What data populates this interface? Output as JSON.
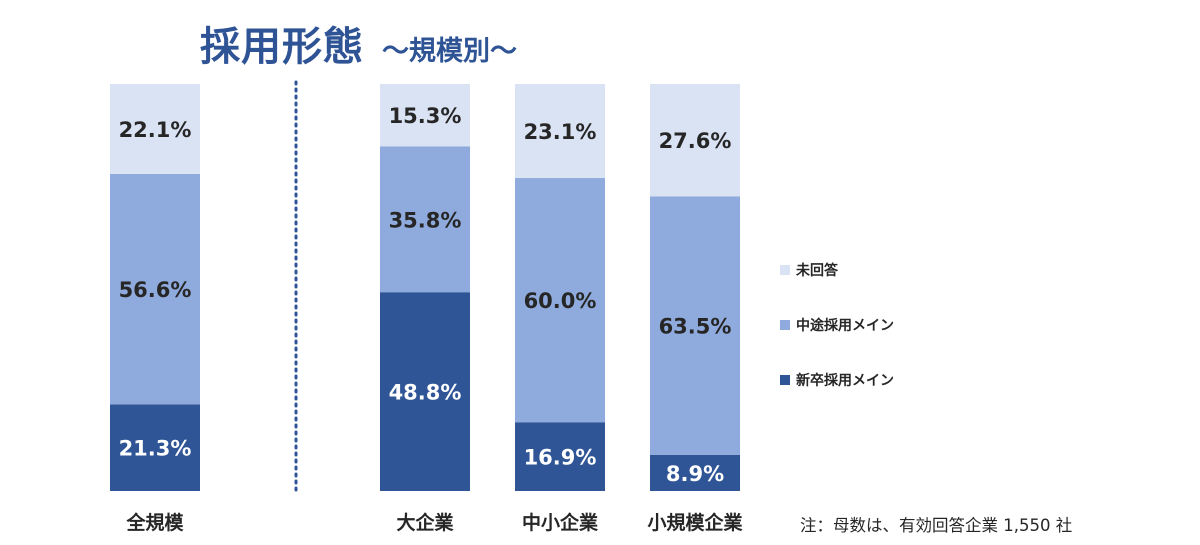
{
  "title": "採用形態",
  "subtitle": "～規模別～",
  "note": "注：母数は、有効回答企業 1,550 社",
  "colors": {
    "title": "#2f5496",
    "shinsotsu": "#2f5597",
    "chuto": "#8faadc",
    "mikaito": "#dae3f3",
    "divider": "#2f5597",
    "dark_text": "#262626",
    "light_text": "#ffffff"
  },
  "chart_data": {
    "type": "bar",
    "stacked": true,
    "percent_stacked": true,
    "categories": [
      "全規模",
      "大企業",
      "中小企業",
      "小規模企業"
    ],
    "series": [
      {
        "name": "新卒採用メイン",
        "values": [
          21.3,
          48.8,
          16.9,
          8.9
        ],
        "labels": [
          "21.3%",
          "48.8%",
          "16.9%",
          "8.9%"
        ]
      },
      {
        "name": "中途採用メイン",
        "values": [
          56.6,
          35.8,
          60.0,
          63.5
        ],
        "labels": [
          "56.6%",
          "35.8%",
          "60.0%",
          "63.5%"
        ]
      },
      {
        "name": "未回答",
        "values": [
          22.1,
          15.3,
          23.1,
          27.6
        ],
        "labels": [
          "22.1%",
          "15.3%",
          "23.1%",
          "27.6%"
        ]
      }
    ],
    "legend": [
      "未回答",
      "中途採用メイン",
      "新卒採用メイン"
    ],
    "legend_position": "right",
    "ylim": [
      0,
      100
    ],
    "grid": false
  }
}
